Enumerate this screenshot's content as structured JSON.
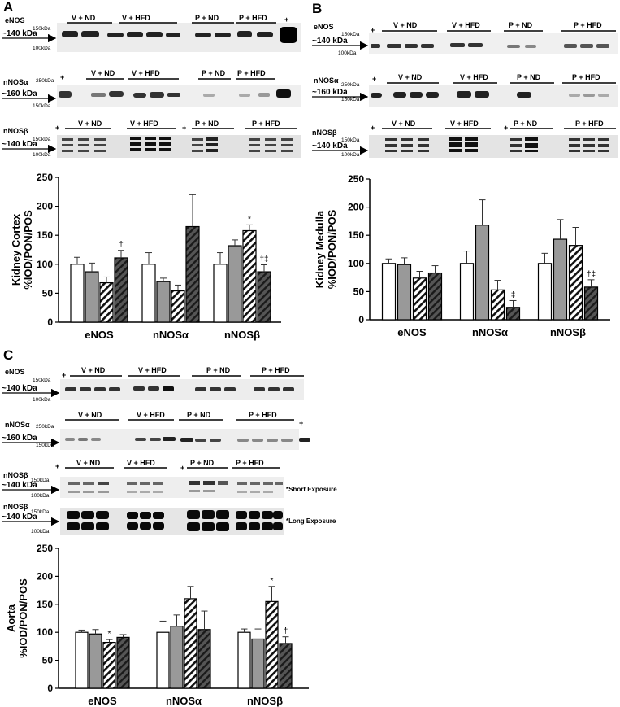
{
  "panels": [
    {
      "letter": "A"
    },
    {
      "letter": "B"
    },
    {
      "letter": "C"
    }
  ],
  "blot_labels": {
    "eNOS": "eNOS",
    "nNOSa": "nNOSα",
    "nNOSb": "nNOSβ",
    "kda140": "~140 kDa",
    "kda160": "~160 kDa",
    "mw150": "150kDa",
    "mw100": "100kDa",
    "mw250": "250kDa",
    "plus": "+",
    "short_exposure": "*Short Exposure",
    "long_exposure": "*Long Exposure"
  },
  "groups": [
    "V + ND",
    "V + HFD",
    "P + ND",
    "P + HFD"
  ],
  "chart_data": [
    {
      "type": "bar",
      "panel": "A",
      "ylabel": "Kidney Cortex %IOD/PON/POS",
      "ylim": [
        0,
        250
      ],
      "yticks": [
        0,
        50,
        100,
        150,
        200,
        250
      ],
      "categories": [
        "eNOS",
        "nNOSα",
        "nNOSβ"
      ],
      "series": [
        {
          "name": "V + ND",
          "values": [
            100,
            100,
            100
          ],
          "errors": [
            12,
            20,
            20
          ]
        },
        {
          "name": "V + HFD",
          "values": [
            87,
            70,
            132
          ],
          "errors": [
            15,
            6,
            10
          ]
        },
        {
          "name": "P + ND",
          "values": [
            68,
            54,
            158
          ],
          "errors": [
            10,
            10,
            10
          ]
        },
        {
          "name": "P + HFD",
          "values": [
            111,
            165,
            87
          ],
          "errors": [
            13,
            55,
            12
          ]
        }
      ],
      "significance": [
        {
          "category": "eNOS",
          "series": "P + HFD",
          "mark": "†"
        },
        {
          "category": "nNOSβ",
          "series": "P + ND",
          "mark": "*"
        },
        {
          "category": "nNOSβ",
          "series": "P + HFD",
          "mark": "†‡"
        }
      ]
    },
    {
      "type": "bar",
      "panel": "B",
      "ylabel": "Kidney Medulla %IOD/PON/POS",
      "ylim": [
        0,
        250
      ],
      "yticks": [
        0,
        50,
        100,
        150,
        200,
        250
      ],
      "categories": [
        "eNOS",
        "nNOSα",
        "nNOSβ"
      ],
      "series": [
        {
          "name": "V + ND",
          "values": [
            100,
            100,
            100
          ],
          "errors": [
            8,
            22,
            18
          ]
        },
        {
          "name": "V + HFD",
          "values": [
            98,
            168,
            143
          ],
          "errors": [
            12,
            45,
            35
          ]
        },
        {
          "name": "P + ND",
          "values": [
            74,
            53,
            132
          ],
          "errors": [
            12,
            17,
            32
          ]
        },
        {
          "name": "P + HFD",
          "values": [
            83,
            22,
            58
          ],
          "errors": [
            13,
            12,
            13
          ]
        }
      ],
      "significance": [
        {
          "category": "nNOSα",
          "series": "P + HFD",
          "mark": "‡"
        },
        {
          "category": "nNOSβ",
          "series": "P + HFD",
          "mark": "†‡"
        }
      ]
    },
    {
      "type": "bar",
      "panel": "C",
      "ylabel": "Aorta %IOD/PON/POS",
      "ylim": [
        0,
        250
      ],
      "yticks": [
        0,
        50,
        100,
        150,
        200,
        250
      ],
      "categories": [
        "eNOS",
        "nNOSα",
        "nNOSβ"
      ],
      "series": [
        {
          "name": "V + ND",
          "values": [
            100,
            100,
            100
          ],
          "errors": [
            4,
            20,
            6
          ]
        },
        {
          "name": "V + HFD",
          "values": [
            97,
            111,
            88
          ],
          "errors": [
            8,
            20,
            18
          ]
        },
        {
          "name": "P + ND",
          "values": [
            82,
            160,
            155
          ],
          "errors": [
            5,
            22,
            27
          ]
        },
        {
          "name": "P + HFD",
          "values": [
            91,
            105,
            80
          ],
          "errors": [
            5,
            33,
            12
          ]
        }
      ],
      "significance": [
        {
          "category": "eNOS",
          "series": "P + ND",
          "mark": "*"
        },
        {
          "category": "nNOSβ",
          "series": "P + ND",
          "mark": "*"
        },
        {
          "category": "nNOSβ",
          "series": "P + HFD",
          "mark": "†"
        }
      ]
    }
  ]
}
